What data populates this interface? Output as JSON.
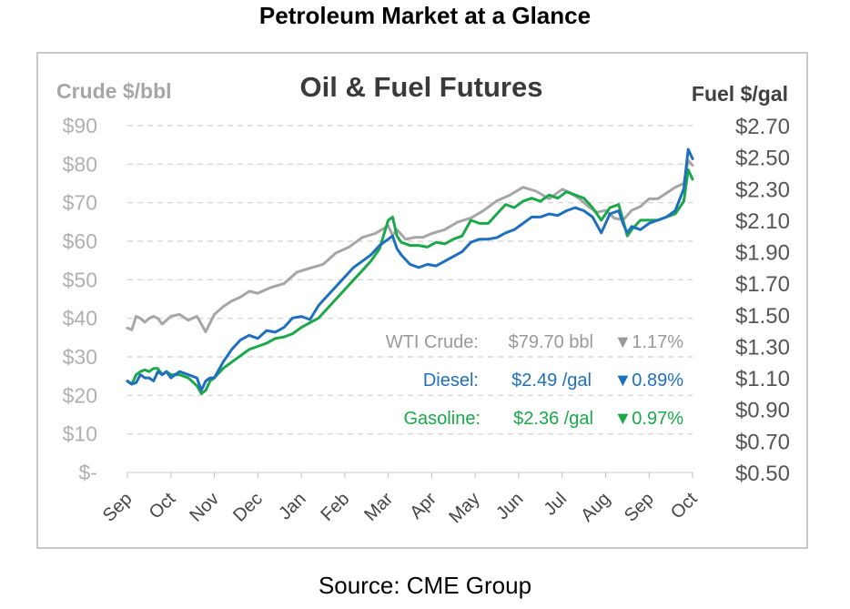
{
  "page": {
    "title": "Petroleum Market at a Glance",
    "source": "Source: CME Group"
  },
  "chart_data": {
    "type": "line",
    "title": "Oil & Fuel Futures",
    "ylabel_left": "Crude $/bbl",
    "ylabel_right": "Fuel $/gal",
    "yticks_left": [
      "$-",
      "$10",
      "$20",
      "$30",
      "$40",
      "$50",
      "$60",
      "$70",
      "$80",
      "$90"
    ],
    "yticks_right": [
      "$0.50",
      "$0.70",
      "$0.90",
      "$1.10",
      "$1.30",
      "$1.50",
      "$1.70",
      "$1.90",
      "$2.10",
      "$2.30",
      "$2.50",
      "$2.70"
    ],
    "ylim_left": [
      0,
      90
    ],
    "ylim_right": [
      0.5,
      2.7
    ],
    "x_categories": [
      "Sep",
      "Oct",
      "Nov",
      "Dec",
      "Jan",
      "Feb",
      "Mar",
      "Apr",
      "May",
      "Jun",
      "Jul",
      "Aug",
      "Sep",
      "Oct"
    ],
    "grid": "horizontal dashed",
    "annotations": [
      {
        "label": "WTI Crude:",
        "value": "$79.70 bbl",
        "change": "▼1.17%",
        "color": "#999999"
      },
      {
        "label": "Diesel:",
        "value": "$2.49 /gal",
        "change": "▼0.89%",
        "color": "#1f6fbf"
      },
      {
        "label": "Gasoline:",
        "value": "$2.36 /gal",
        "change": "▼0.97%",
        "color": "#1aa84a"
      }
    ],
    "series": [
      {
        "color": "#a6a6a6",
        "axis": "left",
        "x": [
          0,
          0.1,
          0.2,
          0.3,
          0.4,
          0.5,
          0.6,
          0.7,
          0.8,
          0.9,
          1.0,
          1.2,
          1.4,
          1.6,
          1.8,
          2.0,
          2.2,
          2.4,
          2.6,
          2.8,
          3.0,
          3.3,
          3.6,
          3.9,
          4.2,
          4.5,
          4.8,
          5.1,
          5.4,
          5.7,
          6.0,
          6.1,
          6.2,
          6.4,
          6.6,
          6.8,
          7.0,
          7.3,
          7.6,
          7.9,
          8.2,
          8.5,
          8.8,
          9.1,
          9.4,
          9.7,
          10.0,
          10.2,
          10.4,
          10.6,
          10.8,
          11.0,
          11.2,
          11.4,
          11.6,
          11.8,
          12.0,
          12.2,
          12.4,
          12.6,
          12.8,
          12.9,
          13.0
        ],
        "values": [
          37.5,
          37,
          40.5,
          40,
          39,
          40,
          40.5,
          40,
          38.5,
          39.5,
          40.5,
          41,
          39.5,
          40.5,
          36.5,
          41,
          43,
          44.5,
          45.5,
          47,
          46.5,
          48,
          49,
          52,
          53,
          54,
          57,
          58.5,
          61,
          62,
          64,
          61.5,
          63,
          60.5,
          61,
          61,
          62,
          63,
          65,
          66,
          68,
          70.5,
          72,
          74,
          73,
          71,
          73.5,
          72.5,
          71,
          69,
          67.5,
          68,
          66,
          65.5,
          68,
          69,
          71,
          71,
          72.5,
          74,
          75,
          81,
          79.7
        ]
      },
      {
        "color": "#1f6fbf",
        "axis": "right",
        "x": [
          0,
          0.1,
          0.2,
          0.3,
          0.4,
          0.5,
          0.6,
          0.7,
          0.8,
          0.9,
          1.0,
          1.2,
          1.4,
          1.6,
          1.7,
          1.8,
          1.9,
          2.0,
          2.2,
          2.4,
          2.6,
          2.8,
          3.0,
          3.2,
          3.4,
          3.6,
          3.8,
          4.0,
          4.2,
          4.4,
          4.6,
          4.8,
          5.0,
          5.2,
          5.4,
          5.6,
          5.8,
          6.0,
          6.1,
          6.2,
          6.3,
          6.5,
          6.7,
          6.9,
          7.1,
          7.3,
          7.5,
          7.7,
          7.9,
          8.1,
          8.3,
          8.5,
          8.7,
          8.9,
          9.1,
          9.3,
          9.5,
          9.7,
          9.9,
          10.1,
          10.3,
          10.5,
          10.7,
          10.9,
          11.1,
          11.3,
          11.4,
          11.5,
          11.6,
          11.8,
          12.0,
          12.2,
          12.4,
          12.6,
          12.8,
          12.9,
          13.0
        ],
        "values": [
          1.08,
          1.06,
          1.07,
          1.12,
          1.1,
          1.1,
          1.08,
          1.14,
          1.12,
          1.14,
          1.1,
          1.14,
          1.12,
          1.1,
          1.02,
          1.08,
          1.1,
          1.1,
          1.2,
          1.28,
          1.34,
          1.37,
          1.35,
          1.4,
          1.39,
          1.42,
          1.48,
          1.49,
          1.47,
          1.56,
          1.62,
          1.68,
          1.74,
          1.8,
          1.84,
          1.88,
          1.94,
          1.98,
          2.0,
          1.92,
          1.88,
          1.82,
          1.8,
          1.82,
          1.81,
          1.84,
          1.87,
          1.9,
          1.96,
          1.98,
          1.98,
          1.99,
          2.02,
          2.04,
          2.08,
          2.12,
          2.12,
          2.14,
          2.13,
          2.16,
          2.18,
          2.16,
          2.12,
          2.02,
          2.14,
          2.16,
          2.08,
          2.02,
          2.06,
          2.04,
          2.08,
          2.1,
          2.12,
          2.16,
          2.3,
          2.55,
          2.49
        ]
      },
      {
        "color": "#1aa84a",
        "axis": "right",
        "x": [
          0,
          0.1,
          0.2,
          0.3,
          0.4,
          0.5,
          0.6,
          0.7,
          0.8,
          0.9,
          1.0,
          1.2,
          1.4,
          1.6,
          1.7,
          1.8,
          1.9,
          2.0,
          2.2,
          2.4,
          2.6,
          2.8,
          3.0,
          3.2,
          3.4,
          3.6,
          3.8,
          4.0,
          4.2,
          4.4,
          4.6,
          4.8,
          5.0,
          5.2,
          5.4,
          5.6,
          5.8,
          6.0,
          6.1,
          6.2,
          6.3,
          6.5,
          6.7,
          6.9,
          7.1,
          7.3,
          7.5,
          7.7,
          7.9,
          8.1,
          8.3,
          8.5,
          8.7,
          8.9,
          9.1,
          9.3,
          9.5,
          9.7,
          9.9,
          10.1,
          10.3,
          10.5,
          10.7,
          10.9,
          11.1,
          11.3,
          11.4,
          11.5,
          11.6,
          11.8,
          12.0,
          12.2,
          12.4,
          12.6,
          12.8,
          12.9,
          13.0
        ],
        "values": [
          1.08,
          1.06,
          1.12,
          1.14,
          1.15,
          1.14,
          1.16,
          1.16,
          1.12,
          1.14,
          1.12,
          1.12,
          1.1,
          1.05,
          1.0,
          1.02,
          1.08,
          1.1,
          1.16,
          1.2,
          1.24,
          1.28,
          1.3,
          1.32,
          1.35,
          1.36,
          1.38,
          1.42,
          1.45,
          1.48,
          1.54,
          1.6,
          1.66,
          1.72,
          1.78,
          1.84,
          1.92,
          2.1,
          2.12,
          2.0,
          1.96,
          1.94,
          1.94,
          1.93,
          1.96,
          1.95,
          1.98,
          2.0,
          2.1,
          2.08,
          2.08,
          2.14,
          2.2,
          2.18,
          2.22,
          2.24,
          2.22,
          2.26,
          2.24,
          2.28,
          2.26,
          2.24,
          2.18,
          2.1,
          2.18,
          2.2,
          2.1,
          2.0,
          2.04,
          2.1,
          2.1,
          2.1,
          2.12,
          2.14,
          2.22,
          2.42,
          2.36
        ]
      }
    ]
  }
}
